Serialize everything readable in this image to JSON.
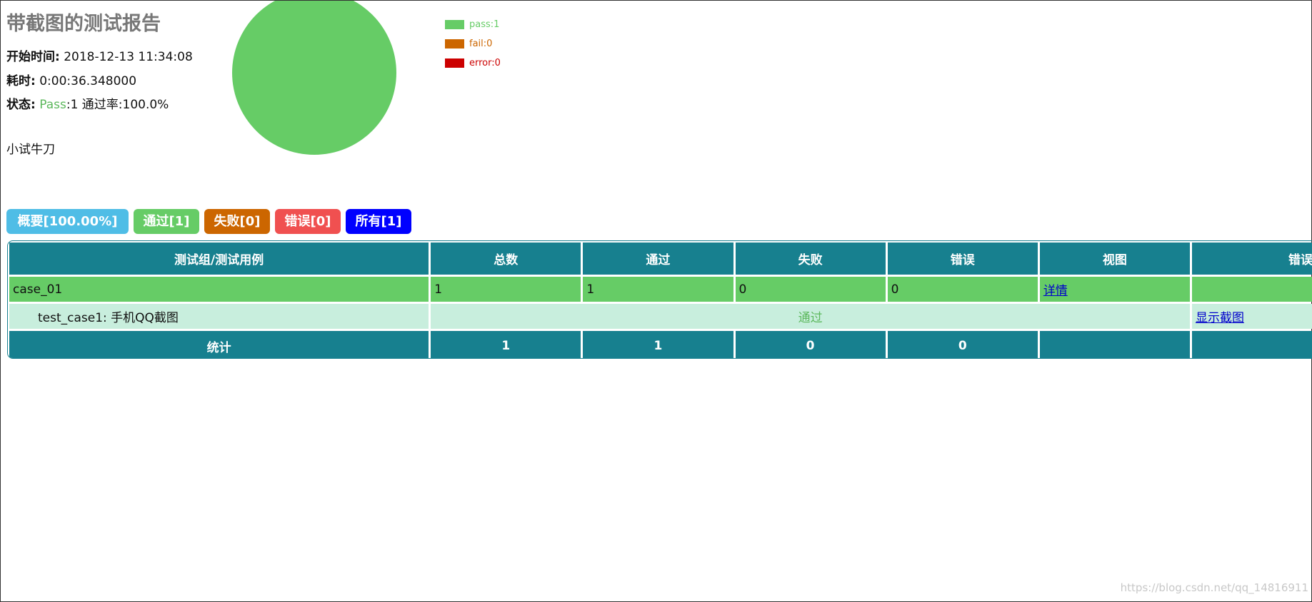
{
  "header": {
    "title": "带截图的测试报告",
    "start_label": "开始时间:",
    "start_value": "2018-12-13 11:34:08",
    "duration_label": "耗时:",
    "duration_value": "0:00:36.348000",
    "status_label": "状态:",
    "status_pass": "Pass",
    "status_rest": ":1 通过率:100.0%",
    "description": "小试牛刀"
  },
  "pie": {
    "type": "pie",
    "slices": [
      {
        "name": "pass",
        "label": "pass:1",
        "value": 1,
        "color": "#66cc66"
      },
      {
        "name": "fail",
        "label": "fail:0",
        "value": 0,
        "color": "#cc6600"
      },
      {
        "name": "error",
        "label": "error:0",
        "value": 0,
        "color": "#cc0000"
      }
    ]
  },
  "tabs": [
    "概要[100.00%]",
    "通过[1]",
    "失败[0]",
    "错误[0]",
    "所有[1]"
  ],
  "table": {
    "header": [
      "测试组/测试用例",
      "总数",
      "通过",
      "失败",
      "错误",
      "视图",
      "错误截图"
    ],
    "group": {
      "name": "case_01",
      "total": 1,
      "pass": 1,
      "fail": 0,
      "error": 0,
      "view": "详情"
    },
    "case": {
      "name": "test_case1: 手机QQ截图",
      "result": "通过",
      "screenshot": "显示截图"
    },
    "summary": {
      "label": "统计",
      "total": 1,
      "pass": 1,
      "fail": 0,
      "error": 0
    }
  },
  "watermark": "https://blog.csdn.net/qq_14816911"
}
